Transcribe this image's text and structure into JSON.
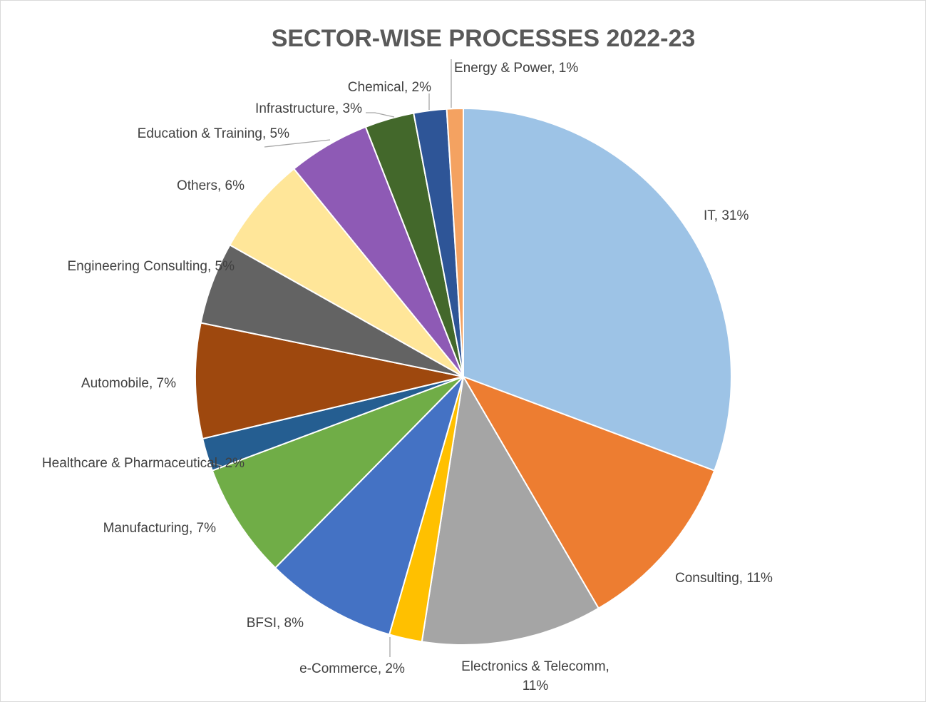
{
  "chart_data": {
    "type": "pie",
    "title": "SECTOR-WISE PROCESSES 2022-23",
    "start_angle_deg": 0,
    "direction": "clockwise",
    "slices": [
      {
        "label": "IT",
        "value": 31,
        "display": "IT, 31%",
        "color": "#9dc3e6"
      },
      {
        "label": "Consulting",
        "value": 11,
        "display": "Consulting, 11%",
        "color": "#ed7d31"
      },
      {
        "label": "Electronics & Telecomm",
        "value": 11,
        "display": "Electronics & Telecomm,|11%",
        "color": "#a5a5a5"
      },
      {
        "label": "e-Commerce",
        "value": 2,
        "display": "e-Commerce, 2%",
        "color": "#ffc000"
      },
      {
        "label": "BFSI",
        "value": 8,
        "display": "BFSI, 8%",
        "color": "#4472c4"
      },
      {
        "label": "Manufacturing",
        "value": 7,
        "display": "Manufacturing, 7%",
        "color": "#70ad47"
      },
      {
        "label": "Healthcare & Pharmaceutical",
        "value": 2,
        "display": "Healthcare & Pharmaceutical, 2%",
        "color": "#255e91"
      },
      {
        "label": "Automobile",
        "value": 7,
        "display": "Automobile, 7%",
        "color": "#9e480e"
      },
      {
        "label": "Engineering Consulting",
        "value": 5,
        "display": "Engineering Consulting, 5%",
        "color": "#636363"
      },
      {
        "label": "Others",
        "value": 6,
        "display": "Others, 6%",
        "color": "#ffe699"
      },
      {
        "label": "Education & Training",
        "value": 5,
        "display": "Education & Training, 5%",
        "color": "#8e5ab5"
      },
      {
        "label": "Infrastructure",
        "value": 3,
        "display": "Infrastructure, 3%",
        "color": "#43682b"
      },
      {
        "label": "Chemical",
        "value": 2,
        "display": "Chemical, 2%",
        "color": "#2e5597"
      },
      {
        "label": "Energy & Power",
        "value": 1,
        "display": "Energy & Power, 1%",
        "color": "#f4a261"
      }
    ]
  }
}
